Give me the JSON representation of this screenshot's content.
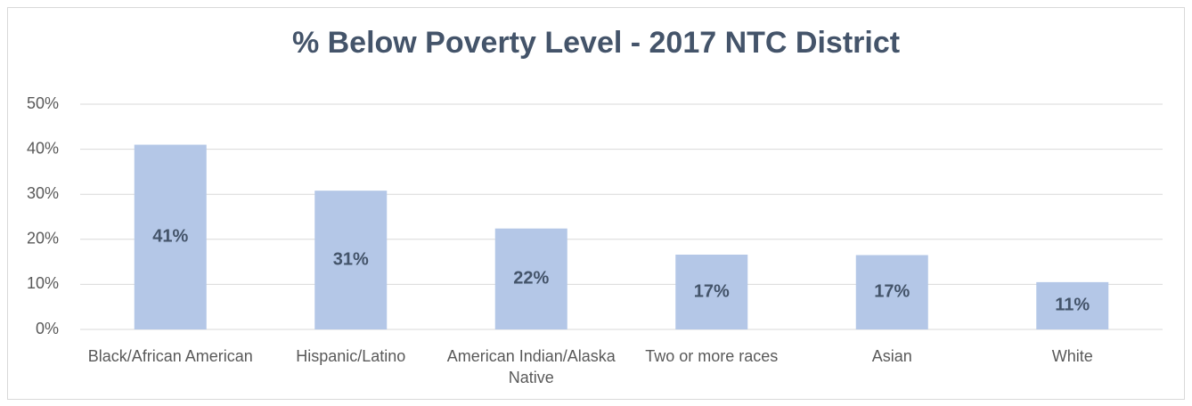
{
  "chart_data": {
    "type": "bar",
    "title": "% Below Poverty Level - 2017 NTC District",
    "categories": [
      "Black/African American",
      "Hispanic/Latino",
      "American Indian/Alaska Native",
      "Two or more races",
      "Asian",
      "White"
    ],
    "values": [
      41,
      30.8,
      22.4,
      16.6,
      16.5,
      10.5
    ],
    "value_labels": [
      "41%",
      "31%",
      "22%",
      "17%",
      "17%",
      "11%"
    ],
    "color": "#b4c7e7",
    "ylim": [
      0,
      50
    ],
    "yticks": [
      {
        "value": 0,
        "label": "0%"
      },
      {
        "value": 10,
        "label": "10%"
      },
      {
        "value": 20,
        "label": "20%"
      },
      {
        "value": 30,
        "label": "30%"
      },
      {
        "value": 40,
        "label": "40%"
      },
      {
        "value": 50,
        "label": "50%"
      }
    ],
    "grid": true
  }
}
